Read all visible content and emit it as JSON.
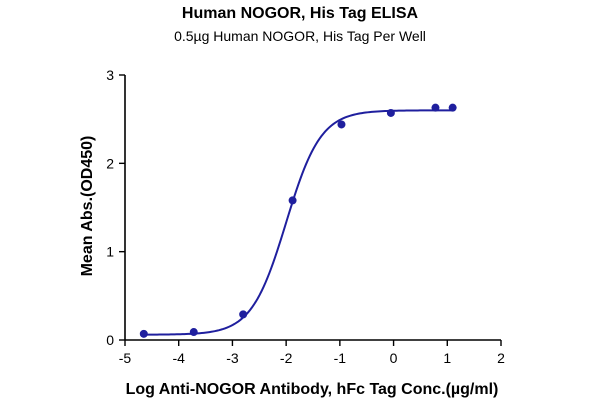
{
  "chart_data": {
    "type": "scatter",
    "title": "Human NOGOR, His Tag ELISA",
    "subtitle": "0.5µg Human NOGOR, His Tag Per Well",
    "xlabel": "Log Anti-NOGOR Antibody, hFc Tag Conc.(µg/ml)",
    "ylabel": "Mean Abs.(OD450)",
    "xlim": [
      -5,
      2
    ],
    "ylim": [
      0,
      3
    ],
    "xticks": [
      -5,
      -4,
      -3,
      -2,
      -1,
      0,
      1,
      2
    ],
    "yticks": [
      0,
      1,
      2,
      3
    ],
    "grid": false,
    "legend": "none",
    "series": [
      {
        "points": [
          {
            "x": -4.65,
            "y": 0.07
          },
          {
            "x": -3.72,
            "y": 0.09
          },
          {
            "x": -2.8,
            "y": 0.29
          },
          {
            "x": -1.88,
            "y": 1.58
          },
          {
            "x": -0.97,
            "y": 2.44
          },
          {
            "x": -0.05,
            "y": 2.57
          },
          {
            "x": 0.78,
            "y": 2.63
          },
          {
            "x": 1.1,
            "y": 2.63
          }
        ],
        "fit": {
          "model": "4PL",
          "bottom": 0.06,
          "top": 2.6,
          "logEC50": -2.0,
          "hill": 1.35
        },
        "color": "#1f1f9e"
      }
    ]
  }
}
